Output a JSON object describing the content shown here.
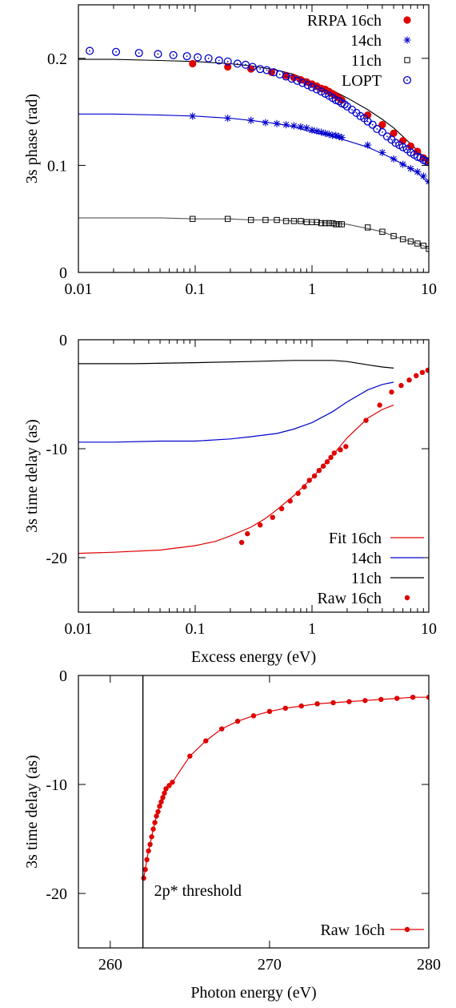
{
  "chart_data": [
    {
      "type": "scatter",
      "x_scale": "log",
      "xlim": [
        0.01,
        10
      ],
      "ylim": [
        0,
        0.25
      ],
      "xlabel": "",
      "ylabel": "3s phase (rad)",
      "x_ticks": [
        "0.01",
        "0.1",
        "1",
        "10"
      ],
      "x_tick_values": [
        0.01,
        0.1,
        1,
        10
      ],
      "y_ticks": [
        "0",
        "0.1",
        "0.2"
      ],
      "y_tick_values": [
        0,
        0.1,
        0.2
      ],
      "legend_position": "top-right",
      "curves": [
        {
          "color": "#000000",
          "x": [
            0.01,
            0.02,
            0.05,
            0.1,
            0.2,
            0.3,
            0.5,
            0.7,
            1,
            1.5,
            2,
            3,
            4,
            5,
            6,
            7,
            8,
            9,
            10
          ],
          "y": [
            0.199,
            0.199,
            0.198,
            0.197,
            0.195,
            0.193,
            0.189,
            0.185,
            0.178,
            0.17,
            0.163,
            0.152,
            0.143,
            0.135,
            0.127,
            0.12,
            0.114,
            0.108,
            0.103
          ]
        },
        {
          "color": "#0000cc",
          "x": [
            0.01,
            0.02,
            0.05,
            0.1,
            0.2,
            0.3,
            0.5,
            0.7,
            1,
            1.5,
            2,
            3,
            4,
            5,
            6,
            7,
            8,
            9,
            10
          ],
          "y": [
            0.148,
            0.148,
            0.147,
            0.146,
            0.144,
            0.142,
            0.139,
            0.136,
            0.131,
            0.127,
            0.123,
            0.117,
            0.111,
            0.106,
            0.101,
            0.097,
            0.093,
            0.088,
            0.083
          ]
        },
        {
          "color": "#555555",
          "x": [
            0.01,
            0.02,
            0.05,
            0.1,
            0.2,
            0.3,
            0.5,
            0.7,
            1,
            1.5,
            2,
            3,
            4,
            5,
            6,
            7,
            8,
            9,
            10
          ],
          "y": [
            0.051,
            0.051,
            0.051,
            0.05,
            0.05,
            0.049,
            0.049,
            0.048,
            0.047,
            0.046,
            0.045,
            0.041,
            0.038,
            0.034,
            0.031,
            0.029,
            0.027,
            0.025,
            0.022
          ]
        }
      ],
      "series": [
        {
          "name": "RRPA 16ch",
          "marker": "filled-circle",
          "color": "#e00000",
          "x": [
            0.095,
            0.19,
            0.3,
            0.45,
            0.6,
            0.7,
            0.8,
            0.9,
            1.0,
            1.1,
            1.2,
            1.3,
            1.4,
            1.5,
            1.6,
            1.7,
            1.8,
            3.0,
            4.0,
            5.0,
            6.0,
            7.0,
            8.0,
            9.0,
            10.0
          ],
          "y": [
            0.195,
            0.192,
            0.19,
            0.187,
            0.184,
            0.182,
            0.18,
            0.178,
            0.176,
            0.174,
            0.172,
            0.171,
            0.169,
            0.167,
            0.165,
            0.163,
            0.161,
            0.147,
            0.138,
            0.13,
            0.123,
            0.118,
            0.113,
            0.107,
            0.104
          ]
        },
        {
          "name": "14ch",
          "marker": "asterisk",
          "color": "#0000cc",
          "x": [
            0.095,
            0.19,
            0.3,
            0.4,
            0.5,
            0.6,
            0.7,
            0.8,
            0.9,
            1.0,
            1.1,
            1.2,
            1.3,
            1.4,
            1.5,
            1.6,
            1.7,
            1.8,
            3.0,
            4.0,
            5.0,
            6.0,
            7.0,
            8.0,
            9.0,
            10.0
          ],
          "y": [
            0.146,
            0.144,
            0.142,
            0.14,
            0.139,
            0.138,
            0.137,
            0.136,
            0.135,
            0.133,
            0.132,
            0.131,
            0.13,
            0.129,
            0.128,
            0.128,
            0.127,
            0.126,
            0.119,
            0.112,
            0.106,
            0.101,
            0.097,
            0.094,
            0.09,
            0.085
          ]
        },
        {
          "name": "11ch",
          "marker": "open-square",
          "color": "#000000",
          "x": [
            0.095,
            0.19,
            0.3,
            0.4,
            0.5,
            0.6,
            0.7,
            0.8,
            0.9,
            1.0,
            1.1,
            1.2,
            1.3,
            1.4,
            1.5,
            1.6,
            1.7,
            1.8,
            3.0,
            4.0,
            5.0,
            6.0,
            7.0,
            8.0,
            9.0,
            10.0
          ],
          "y": [
            0.05,
            0.05,
            0.049,
            0.049,
            0.049,
            0.048,
            0.048,
            0.048,
            0.047,
            0.047,
            0.047,
            0.046,
            0.046,
            0.046,
            0.046,
            0.045,
            0.045,
            0.045,
            0.042,
            0.038,
            0.034,
            0.031,
            0.029,
            0.027,
            0.025,
            0.022
          ]
        },
        {
          "name": "LOPT",
          "marker": "open-circle",
          "color": "#0000cc",
          "x": [
            0.0125,
            0.021,
            0.033,
            0.048,
            0.065,
            0.085,
            0.105,
            0.13,
            0.16,
            0.19,
            0.23,
            0.27,
            0.31,
            0.36,
            0.41,
            0.47,
            0.53,
            0.6,
            0.67,
            0.75,
            0.83,
            0.92,
            1.0,
            1.1,
            1.2,
            1.3,
            1.4,
            1.5,
            1.6,
            1.7,
            1.8,
            1.9,
            2.0,
            2.2,
            2.4,
            2.6,
            2.8,
            3.0,
            3.3,
            3.6,
            4.0,
            4.4,
            4.8,
            5.2,
            5.6,
            6.0,
            6.5,
            7.0,
            7.5,
            8.0,
            8.5,
            9.0,
            9.5,
            10.0
          ],
          "y": [
            0.207,
            0.206,
            0.205,
            0.204,
            0.203,
            0.202,
            0.201,
            0.2,
            0.198,
            0.197,
            0.195,
            0.194,
            0.192,
            0.19,
            0.189,
            0.187,
            0.185,
            0.183,
            0.181,
            0.179,
            0.177,
            0.175,
            0.173,
            0.171,
            0.169,
            0.167,
            0.165,
            0.163,
            0.161,
            0.16,
            0.158,
            0.157,
            0.155,
            0.152,
            0.149,
            0.146,
            0.144,
            0.141,
            0.138,
            0.134,
            0.131,
            0.127,
            0.124,
            0.121,
            0.119,
            0.117,
            0.115,
            0.112,
            0.11,
            0.108,
            0.107,
            0.105,
            0.104,
            0.103
          ]
        }
      ]
    },
    {
      "type": "line",
      "x_scale": "log",
      "xlim": [
        0.01,
        10
      ],
      "ylim": [
        -25,
        0
      ],
      "xlabel": "Excess energy (eV)",
      "ylabel": "3s time delay (as)",
      "x_ticks": [
        "0.01",
        "0.1",
        "1",
        "10"
      ],
      "x_tick_values": [
        0.01,
        0.1,
        1,
        10
      ],
      "y_ticks": [
        "-20",
        "-10",
        "0"
      ],
      "y_tick_values": [
        -20,
        -10,
        0
      ],
      "legend_position": "bottom-right",
      "series": [
        {
          "name": "Fit 16ch",
          "marker": "line",
          "color": "#e00000",
          "x": [
            0.01,
            0.02,
            0.05,
            0.1,
            0.15,
            0.2,
            0.3,
            0.4,
            0.5,
            0.7,
            1.0,
            1.5,
            2.0,
            3.0,
            4.0,
            5.0
          ],
          "y": [
            -19.6,
            -19.5,
            -19.3,
            -18.9,
            -18.5,
            -18.0,
            -17.2,
            -16.4,
            -15.6,
            -14.3,
            -12.7,
            -10.6,
            -9.0,
            -7.2,
            -6.4,
            -6.0
          ]
        },
        {
          "name": "14ch",
          "marker": "line",
          "color": "#0000cc",
          "x": [
            0.01,
            0.02,
            0.05,
            0.1,
            0.2,
            0.3,
            0.5,
            0.7,
            1.0,
            1.5,
            2.0,
            3.0,
            4.0,
            5.0
          ],
          "y": [
            -9.4,
            -9.4,
            -9.3,
            -9.3,
            -9.1,
            -8.9,
            -8.6,
            -8.2,
            -7.6,
            -6.6,
            -5.7,
            -4.6,
            -4.1,
            -3.9
          ]
        },
        {
          "name": "11ch",
          "marker": "line",
          "color": "#000000",
          "x": [
            0.01,
            0.03,
            0.1,
            0.3,
            0.7,
            1.0,
            1.5,
            2.0,
            3.0,
            4.0,
            5.0
          ],
          "y": [
            -2.2,
            -2.2,
            -2.1,
            -2.0,
            -1.9,
            -1.9,
            -1.9,
            -2.0,
            -2.3,
            -2.5,
            -2.6
          ]
        },
        {
          "name": "Raw 16ch",
          "marker": "filled-dot",
          "color": "#e00000",
          "x": [
            0.25,
            0.28,
            0.36,
            0.46,
            0.55,
            0.65,
            0.76,
            0.86,
            0.95,
            1.05,
            1.15,
            1.25,
            1.35,
            1.45,
            1.55,
            1.75,
            1.95,
            2.9,
            3.8,
            4.8,
            5.8,
            6.8,
            7.8,
            8.8,
            9.8
          ],
          "y": [
            -18.6,
            -17.8,
            -17.0,
            -16.3,
            -15.5,
            -14.8,
            -14.1,
            -13.5,
            -12.9,
            -12.5,
            -12.0,
            -11.6,
            -11.2,
            -10.8,
            -10.4,
            -10.1,
            -9.8,
            -7.4,
            -6.0,
            -4.8,
            -4.2,
            -3.7,
            -3.3,
            -3.0,
            -2.8
          ]
        }
      ]
    },
    {
      "type": "line",
      "xlim": [
        258,
        280
      ],
      "ylim": [
        -25,
        0
      ],
      "xlabel": "Photon energy (eV)",
      "ylabel": "3s time delay (as)",
      "x_ticks": [
        "260",
        "270",
        "280"
      ],
      "x_tick_values": [
        260,
        270,
        280
      ],
      "y_ticks": [
        "-20",
        "-10",
        "0"
      ],
      "y_tick_values": [
        -20,
        -10,
        0
      ],
      "legend_position": "bottom-right",
      "threshold": {
        "x": 262.05,
        "label": "2p* threshold"
      },
      "series": [
        {
          "name": "Raw 16ch",
          "marker": "line-dot",
          "color": "#e00000",
          "x": [
            262.1,
            262.2,
            262.3,
            262.4,
            262.5,
            262.6,
            262.7,
            262.8,
            262.9,
            263.0,
            263.1,
            263.2,
            263.3,
            263.4,
            263.5,
            263.7,
            263.9,
            265.0,
            266.0,
            267.0,
            268.0,
            269.0,
            270.0,
            271.0,
            272.0,
            273.0,
            274.0,
            275.0,
            276.0,
            277.0,
            278.0,
            279.0,
            280.0
          ],
          "y": [
            -18.6,
            -17.8,
            -16.9,
            -16.1,
            -15.5,
            -14.8,
            -14.1,
            -13.5,
            -12.9,
            -12.5,
            -12.0,
            -11.6,
            -11.2,
            -10.8,
            -10.4,
            -10.1,
            -9.8,
            -7.4,
            -6.0,
            -4.9,
            -4.2,
            -3.7,
            -3.3,
            -3.0,
            -2.8,
            -2.6,
            -2.5,
            -2.4,
            -2.3,
            -2.2,
            -2.1,
            -2.0,
            -2.0
          ]
        }
      ]
    }
  ]
}
